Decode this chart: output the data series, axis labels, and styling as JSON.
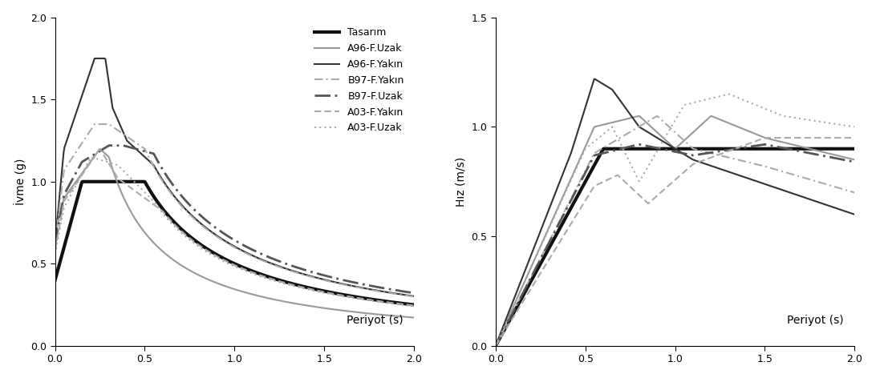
{
  "left_ylabel": "İvme (g)",
  "right_ylabel": "Hız (m/s)",
  "xlabel": "Periyot (s)",
  "left_ylim": [
    0.0,
    2.0
  ],
  "right_ylim": [
    0.0,
    1.5
  ],
  "xlim": [
    0.0,
    2.0
  ],
  "legend_labels": [
    "Tasarım",
    "A96-F.Uzak",
    "A96-F.Yakın",
    "B97-F.Yakın",
    "B97-F.Uzak",
    "A03-F.Yakın",
    "A03-F.Uzak"
  ],
  "line_props": [
    {
      "color": "#111111",
      "lw": 3.0,
      "ls": "-",
      "dashes": null
    },
    {
      "color": "#999999",
      "lw": 1.5,
      "ls": "-",
      "dashes": null
    },
    {
      "color": "#333333",
      "lw": 1.5,
      "ls": "-",
      "dashes": null
    },
    {
      "color": "#aaaaaa",
      "lw": 1.5,
      "ls": "-.",
      "dashes": [
        5,
        2,
        1,
        2
      ]
    },
    {
      "color": "#555555",
      "lw": 2.0,
      "ls": "-.",
      "dashes": [
        7,
        2,
        1,
        2
      ]
    },
    {
      "color": "#aaaaaa",
      "lw": 1.5,
      "ls": "--",
      "dashes": [
        4,
        2,
        4,
        2
      ]
    },
    {
      "color": "#aaaaaa",
      "lw": 1.5,
      "ls": ":",
      "dashes": [
        1,
        2,
        1,
        2
      ]
    }
  ],
  "background_color": "#ffffff",
  "tick_fontsize": 9,
  "label_fontsize": 10,
  "legend_fontsize": 9
}
